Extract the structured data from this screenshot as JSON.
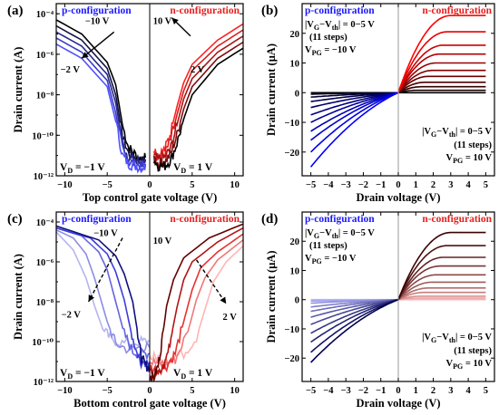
{
  "chart_data": [
    {
      "panel": "(a)",
      "type": "line",
      "xlabel": "Top control gate voltage (V)",
      "ylabel": "Drain current (A)",
      "xlim": [
        -11,
        11
      ],
      "ylim_log10": [
        -12,
        -3.5
      ],
      "yscale": "log",
      "x_ticks": [
        "−10",
        "−5",
        "0",
        "5",
        "10"
      ],
      "y_ticks": [
        "10⁻¹²",
        "10⁻¹⁰",
        "10⁻⁸",
        "10⁻⁶",
        "10⁻⁴"
      ],
      "left_header": "p-configuration",
      "right_header": "n-configuration",
      "left_corner": [
        "V",
        "D",
        " = −1 V"
      ],
      "right_corner": [
        "V",
        "D",
        " = 1 V"
      ],
      "annotations": {
        "p_start": "−10 V",
        "p_end": "−2 V",
        "n_start": "10 V",
        "n_end": "2 V"
      },
      "colors": {
        "p": [
          "#000000",
          "#141446",
          "#28288c",
          "#3c3cc8",
          "#5050ff"
        ],
        "n": [
          "#ff2222",
          "#d81b1b",
          "#ac1414",
          "#7e0e0e",
          "#000000"
        ]
      },
      "series": [
        {
          "branch": "p",
          "x": [
            -11,
            -8,
            -5,
            -4,
            -3.2,
            -2.5,
            -1.8,
            -1,
            -0.5
          ],
          "log10_y": [
            -4.3,
            -5.0,
            -6.4,
            -7.5,
            -9.5,
            -10.6,
            -10.9,
            -11.2,
            -11.1
          ]
        },
        {
          "branch": "p",
          "x": [
            -11,
            -8,
            -5,
            -4,
            -3.2,
            -2.5,
            -1.8,
            -1,
            -0.5
          ],
          "log10_y": [
            -4.6,
            -5.3,
            -6.7,
            -8.0,
            -10.0,
            -10.9,
            -11.1,
            -11.3,
            -11.2
          ]
        },
        {
          "branch": "p",
          "x": [
            -11,
            -8,
            -5,
            -4,
            -3.2,
            -2.5,
            -1.8,
            -1,
            -0.5
          ],
          "log10_y": [
            -4.9,
            -5.6,
            -7.0,
            -8.4,
            -10.4,
            -11.1,
            -11.2,
            -11.4,
            -11.3
          ]
        },
        {
          "branch": "p",
          "x": [
            -11,
            -8,
            -5,
            -4,
            -3.2,
            -2.5,
            -1.8,
            -1,
            -0.5
          ],
          "log10_y": [
            -5.2,
            -5.9,
            -7.3,
            -8.9,
            -10.7,
            -11.3,
            -11.4,
            -11.5,
            -11.4
          ]
        },
        {
          "branch": "p",
          "x": [
            -11,
            -8,
            -5,
            -4,
            -3.2,
            -2.5,
            -1.8,
            -1,
            -0.5
          ],
          "log10_y": [
            -5.5,
            -6.2,
            -7.6,
            -9.3,
            -11.0,
            -11.4,
            -11.5,
            -11.6,
            -11.5
          ]
        },
        {
          "branch": "n",
          "x": [
            0.5,
            1,
            1.8,
            2.5,
            3.2,
            4,
            5,
            8,
            11
          ],
          "log10_y": [
            -10.6,
            -11.0,
            -10.7,
            -9.8,
            -8.6,
            -7.4,
            -6.5,
            -5.3,
            -4.5
          ]
        },
        {
          "branch": "n",
          "x": [
            0.5,
            1,
            1.8,
            2.5,
            3.2,
            4,
            5,
            8,
            11
          ],
          "log10_y": [
            -10.8,
            -11.1,
            -10.9,
            -10.2,
            -9.0,
            -7.8,
            -6.8,
            -5.6,
            -4.8
          ]
        },
        {
          "branch": "n",
          "x": [
            0.5,
            1,
            1.8,
            2.5,
            3.2,
            4,
            5,
            8,
            11
          ],
          "log10_y": [
            -11.0,
            -11.2,
            -11.1,
            -10.6,
            -9.5,
            -8.2,
            -7.2,
            -5.9,
            -5.1
          ]
        },
        {
          "branch": "n",
          "x": [
            0.5,
            1,
            1.8,
            2.5,
            3.2,
            4,
            5,
            8,
            11
          ],
          "log10_y": [
            -11.1,
            -11.4,
            -11.3,
            -10.9,
            -10.0,
            -8.7,
            -7.6,
            -6.2,
            -5.4
          ]
        },
        {
          "branch": "n",
          "x": [
            0.5,
            1,
            1.8,
            2.5,
            3.2,
            4,
            5,
            8,
            11
          ],
          "log10_y": [
            -11.2,
            -11.5,
            -11.5,
            -11.2,
            -10.4,
            -9.2,
            -8.0,
            -6.5,
            -5.7
          ]
        }
      ]
    },
    {
      "panel": "(b)",
      "type": "line",
      "xlabel": "Drain voltage (V)",
      "ylabel": "Drain current (μA)",
      "xlim": [
        -5.5,
        5.5
      ],
      "ylim": [
        -28,
        30
      ],
      "x_ticks": [
        "−5",
        "−4",
        "−3",
        "−2",
        "−1",
        "0",
        "1",
        "2",
        "3",
        "4",
        "5"
      ],
      "y_ticks": [
        "−20",
        "−10",
        "0",
        "10",
        "20"
      ],
      "left_header": "p-configuration",
      "right_header": "n-configuration",
      "box_top": {
        "line1": "|V",
        "line1_sub": "G",
        "line1_mid": "−V",
        "line1_sub2": "th",
        "line1_end": "| = 0−5 V",
        "line2": "(11 steps)",
        "line3": "V",
        "line3_sub": "PG",
        "line3_end": " = −10 V"
      },
      "box_bottom": {
        "line1": "|V",
        "line1_sub": "G",
        "line1_mid": "−V",
        "line1_sub2": "th",
        "line1_end": "| = 0−5 V",
        "line2": "(11 steps)",
        "line3": "V",
        "line3_sub": "PG",
        "line3_end": " = 10 V"
      },
      "n_saturation_uA": [
        0,
        0.8,
        2,
        3.5,
        5.5,
        7.5,
        10,
        13,
        16,
        20.5,
        26
      ],
      "p_values_at_minus5V_uA": [
        0,
        -0.5,
        -1.5,
        -3,
        -5,
        -7.5,
        -10,
        -13,
        -16,
        -20,
        -25
      ],
      "colors": {
        "p_strong": "#0000ff",
        "p_weak": "#000000",
        "n_strong": "#ff0000",
        "n_weak": "#000000"
      }
    },
    {
      "panel": "(c)",
      "type": "line",
      "xlabel": "Bottom control gate voltage (V)",
      "ylabel": "Drain current (A)",
      "xlim": [
        -11,
        11
      ],
      "ylim_log10": [
        -12,
        -3.5
      ],
      "yscale": "log",
      "x_ticks": [
        "−10",
        "−5",
        "0",
        "5",
        "10"
      ],
      "y_ticks": [
        "10⁻¹²",
        "10⁻¹⁰",
        "10⁻⁸",
        "10⁻⁶",
        "10⁻⁴"
      ],
      "left_header": "p-configuration",
      "right_header": "n-configuration",
      "left_corner": [
        "V",
        "D",
        " = −1 V"
      ],
      "right_corner": [
        "V",
        "D",
        " = 1 V"
      ],
      "annotations": {
        "p_start": "−10 V",
        "p_end": "−2 V",
        "n_start": "10 V",
        "n_end": "2 V"
      },
      "colors": {
        "p": [
          "#b4b4f0",
          "#8c8ce6",
          "#6464e1",
          "#3c3cdc",
          "#101080"
        ],
        "n": [
          "#ffb4b4",
          "#f07878",
          "#e63232",
          "#b41414",
          "#640000"
        ]
      },
      "series": [
        {
          "branch": "p",
          "x": [
            -11,
            -9,
            -7.5,
            -6.5,
            -5.5,
            -4.5,
            -3,
            -1,
            0
          ],
          "log10_y": [
            -4.5,
            -5.4,
            -6.8,
            -8.2,
            -9.4,
            -9.9,
            -10.1,
            -10.0,
            -10.0
          ]
        },
        {
          "branch": "p",
          "x": [
            -11,
            -9,
            -7.5,
            -6.5,
            -5,
            -4,
            -2.5,
            -1,
            0
          ],
          "log10_y": [
            -4.4,
            -4.8,
            -5.6,
            -6.8,
            -9.0,
            -10.1,
            -10.4,
            -10.3,
            -10.3
          ]
        },
        {
          "branch": "p",
          "x": [
            -11,
            -8,
            -6,
            -5,
            -4,
            -3,
            -2,
            -1,
            0
          ],
          "log10_y": [
            -4.3,
            -4.7,
            -5.5,
            -6.4,
            -8.0,
            -9.6,
            -10.5,
            -10.6,
            -10.6
          ]
        },
        {
          "branch": "p",
          "x": [
            -11,
            -7,
            -5,
            -4,
            -3,
            -2.2,
            -1.5,
            -1,
            0
          ],
          "log10_y": [
            -4.3,
            -4.8,
            -5.6,
            -6.5,
            -7.9,
            -9.5,
            -10.6,
            -11.0,
            -11.0
          ]
        },
        {
          "branch": "p",
          "x": [
            -11,
            -6,
            -4,
            -3,
            -2,
            -1.4,
            -1,
            -0.5,
            0
          ],
          "log10_y": [
            -4.2,
            -4.9,
            -5.7,
            -6.6,
            -8.0,
            -9.6,
            -10.8,
            -11.2,
            -11.3
          ]
        },
        {
          "branch": "n",
          "x": [
            0,
            1,
            2,
            4,
            5.5,
            6.5,
            7.5,
            9,
            11
          ],
          "log10_y": [
            -10.8,
            -10.8,
            -10.9,
            -10.6,
            -9.8,
            -8.4,
            -7.0,
            -6.0,
            -5.2
          ]
        },
        {
          "branch": "n",
          "x": [
            0,
            1,
            2,
            3,
            4.5,
            5.5,
            6.5,
            8,
            11
          ],
          "log10_y": [
            -11.0,
            -11.1,
            -11.1,
            -10.9,
            -9.5,
            -7.9,
            -6.8,
            -5.9,
            -4.9
          ]
        },
        {
          "branch": "n",
          "x": [
            0,
            1,
            2,
            3,
            4,
            5,
            6,
            8,
            11
          ],
          "log10_y": [
            -11.3,
            -11.4,
            -11.2,
            -10.6,
            -9.0,
            -7.4,
            -6.3,
            -5.5,
            -4.6
          ]
        },
        {
          "branch": "n",
          "x": [
            0,
            1,
            1.8,
            2.5,
            3.2,
            4,
            5,
            8,
            11
          ],
          "log10_y": [
            -11.6,
            -11.7,
            -11.1,
            -9.8,
            -8.3,
            -6.9,
            -6.0,
            -5.0,
            -4.3
          ]
        },
        {
          "branch": "n",
          "x": [
            0,
            0.5,
            1,
            1.5,
            2,
            2.8,
            4,
            7,
            11
          ],
          "log10_y": [
            -11.7,
            -11.8,
            -11.2,
            -9.8,
            -8.2,
            -6.9,
            -5.8,
            -4.8,
            -4.1
          ]
        }
      ]
    },
    {
      "panel": "(d)",
      "type": "line",
      "xlabel": "Drain voltage (V)",
      "ylabel": "Drain current (μA)",
      "xlim": [
        -5.5,
        5.5
      ],
      "ylim": [
        -28,
        30
      ],
      "x_ticks": [
        "−5",
        "−4",
        "−3",
        "−2",
        "−1",
        "0",
        "1",
        "2",
        "3",
        "4",
        "5"
      ],
      "y_ticks": [
        "−20",
        "−10",
        "0",
        "10",
        "20"
      ],
      "left_header": "p-configuration",
      "right_header": "n-configuration",
      "box_top": {
        "line1": "|V",
        "line1_sub": "G",
        "line1_mid": "−V",
        "line1_sub2": "th",
        "line1_end": "| = 0−5 V",
        "line2": "(11 steps)",
        "line3": "V",
        "line3_sub": "PG",
        "line3_end": " = −10 V"
      },
      "box_bottom": {
        "line1": "|V",
        "line1_sub": "G",
        "line1_mid": "−V",
        "line1_sub2": "th",
        "line1_end": "| = 0−5 V",
        "line2": "(11 steps)",
        "line3": "V",
        "line3_sub": "PG",
        "line3_end": " = 10 V"
      },
      "n_saturation_uA": [
        0,
        0.5,
        1.2,
        2.5,
        4,
        6,
        8.5,
        11.5,
        14.5,
        18.5,
        23
      ],
      "p_values_at_minus5V_uA": [
        0,
        -0.5,
        -1.2,
        -2.5,
        -4,
        -6,
        -8.5,
        -11.5,
        -14.5,
        -18,
        -21.5
      ],
      "colors": {
        "p_strong": "#000050",
        "p_weak": "#b4b4ff",
        "n_strong": "#3c0000",
        "n_weak": "#ffb4b4"
      }
    }
  ]
}
